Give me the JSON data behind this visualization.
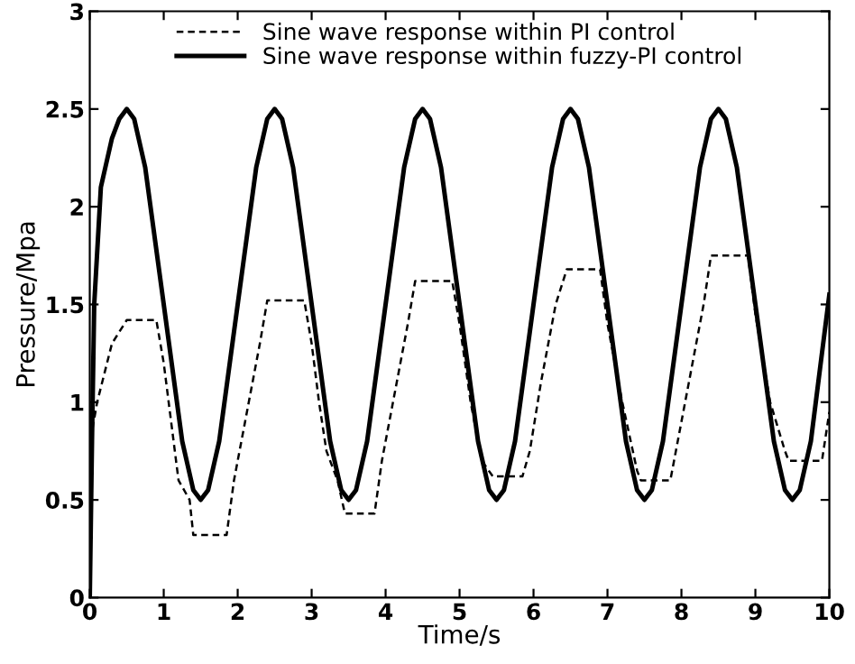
{
  "chart_data": {
    "type": "line",
    "xlabel": "Time/s",
    "ylabel": "Pressure/Mpa",
    "xlim": [
      0,
      10
    ],
    "xticks": [
      0,
      1,
      2,
      3,
      4,
      5,
      6,
      7,
      8,
      9,
      10
    ],
    "ylim": [
      0,
      3
    ],
    "yticks": [
      0,
      0.5,
      1,
      1.5,
      2,
      2.5,
      3
    ],
    "grid": false,
    "legend": "top",
    "series": [
      {
        "name": "Sine wave response within PI control",
        "color": "#000000",
        "line_style": "dashed",
        "x": [
          0,
          0.03,
          0.1,
          0.3,
          0.5,
          0.9,
          1.0,
          1.1,
          1.2,
          1.35,
          1.4,
          1.85,
          1.95,
          2.1,
          2.3,
          2.4,
          2.9,
          3.0,
          3.1,
          3.2,
          3.35,
          3.45,
          3.85,
          3.95,
          4.1,
          4.3,
          4.4,
          4.9,
          5.0,
          5.15,
          5.3,
          5.45,
          5.85,
          5.95,
          6.1,
          6.3,
          6.45,
          6.9,
          7.0,
          7.2,
          7.4,
          7.45,
          7.85,
          7.95,
          8.1,
          8.3,
          8.4,
          8.9,
          9.0,
          9.2,
          9.4,
          9.45,
          9.9,
          10
        ],
        "values": [
          0,
          0.85,
          1.0,
          1.3,
          1.42,
          1.42,
          1.2,
          0.9,
          0.6,
          0.5,
          0.32,
          0.32,
          0.6,
          0.9,
          1.3,
          1.52,
          1.52,
          1.3,
          1.0,
          0.75,
          0.6,
          0.43,
          0.43,
          0.7,
          1.0,
          1.4,
          1.62,
          1.62,
          1.4,
          1.0,
          0.7,
          0.62,
          0.62,
          0.75,
          1.1,
          1.5,
          1.68,
          1.68,
          1.4,
          1.0,
          0.65,
          0.6,
          0.6,
          0.8,
          1.1,
          1.5,
          1.75,
          1.75,
          1.45,
          1.0,
          0.75,
          0.7,
          0.7,
          0.95
        ]
      },
      {
        "name": "Sine wave response within fuzzy-PI control",
        "color": "#000000",
        "line_style": "solid",
        "x": [
          0,
          0.03,
          0.06,
          0.15,
          0.3,
          0.4,
          0.5,
          0.6,
          0.75,
          1.0,
          1.25,
          1.4,
          1.5,
          1.6,
          1.75,
          2.0,
          2.25,
          2.4,
          2.5,
          2.6,
          2.75,
          3.0,
          3.25,
          3.4,
          3.5,
          3.6,
          3.75,
          4.0,
          4.25,
          4.4,
          4.5,
          4.6,
          4.75,
          5.0,
          5.25,
          5.4,
          5.5,
          5.6,
          5.75,
          6.0,
          6.25,
          6.4,
          6.5,
          6.6,
          6.75,
          7.0,
          7.25,
          7.4,
          7.5,
          7.6,
          7.75,
          8.0,
          8.25,
          8.4,
          8.5,
          8.6,
          8.75,
          9.0,
          9.25,
          9.4,
          9.5,
          9.6,
          9.75,
          10.0
        ],
        "values": [
          0,
          0.8,
          1.5,
          2.1,
          2.35,
          2.45,
          2.5,
          2.45,
          2.2,
          1.5,
          0.8,
          0.55,
          0.5,
          0.55,
          0.8,
          1.5,
          2.2,
          2.45,
          2.5,
          2.45,
          2.2,
          1.5,
          0.8,
          0.55,
          0.5,
          0.55,
          0.8,
          1.5,
          2.2,
          2.45,
          2.5,
          2.45,
          2.2,
          1.5,
          0.8,
          0.55,
          0.5,
          0.55,
          0.8,
          1.5,
          2.2,
          2.45,
          2.5,
          2.45,
          2.2,
          1.5,
          0.8,
          0.55,
          0.5,
          0.55,
          0.8,
          1.5,
          2.2,
          2.45,
          2.5,
          2.45,
          2.2,
          1.5,
          0.8,
          0.55,
          0.5,
          0.55,
          0.8,
          1.55
        ]
      }
    ]
  }
}
